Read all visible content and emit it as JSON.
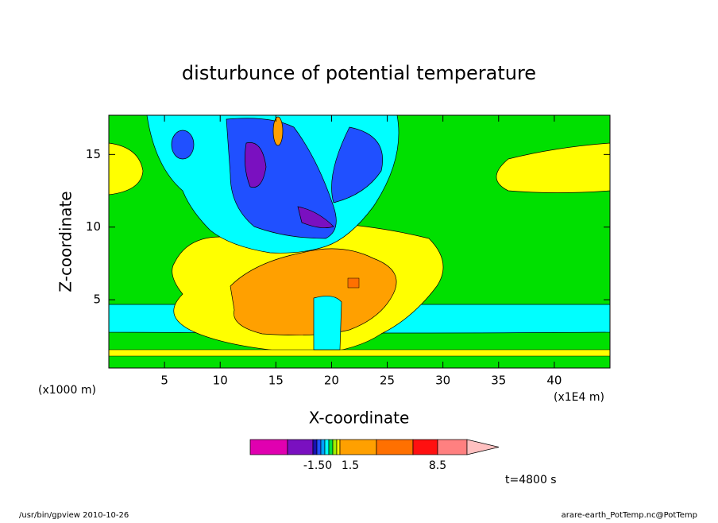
{
  "chart_data": {
    "type": "contour",
    "title": "disturbunce of potential temperature",
    "xlabel": "X-coordinate",
    "ylabel": "Z-coordinate",
    "xunit": "(x1000 m)",
    "xunit2": "(x1E4 m)",
    "xlim": [
      0,
      45
    ],
    "ylim": [
      0.3,
      17.7
    ],
    "xticks": [
      5,
      10,
      15,
      20,
      25,
      30,
      35,
      40
    ],
    "yticks": [
      5,
      10,
      15
    ],
    "colorbar": {
      "colors": [
        "#e000b0",
        "#7a10c0",
        "#1a10b0",
        "#2050ff",
        "#00a0ff",
        "#00ffff",
        "#00e040",
        "#a0f000",
        "#ffff00",
        "#ffa000",
        "#ff7000",
        "#ff1010",
        "#ff8080",
        "#ffc0c0"
      ],
      "labels": [
        {
          "value": -1.5,
          "label": "-1.50"
        },
        1.5,
        8.5
      ]
    },
    "annotation": "t=4800 s",
    "footer_left": "/usr/bin/gpview  2010-10-26",
    "footer_right": "arare-earth_PotTemp.nc@PotTemp"
  }
}
